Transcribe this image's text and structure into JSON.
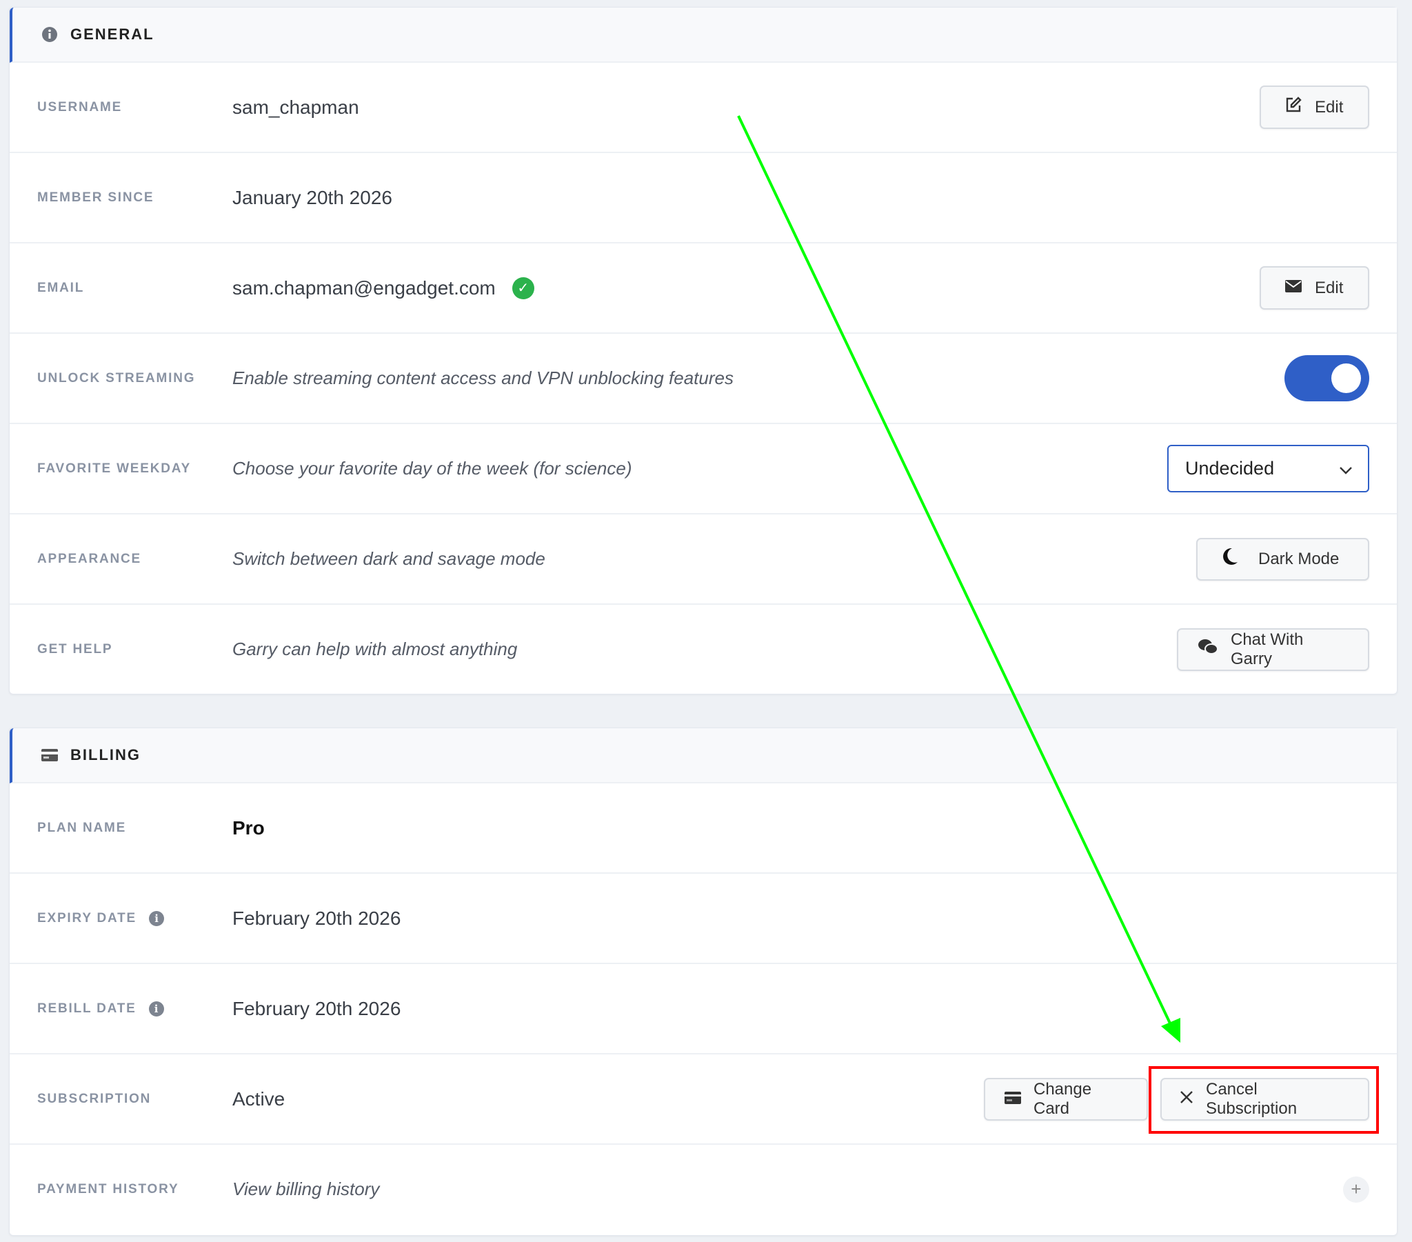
{
  "general": {
    "title": "GENERAL",
    "icon": "info-circle-icon",
    "rows": [
      {
        "label": "USERNAME",
        "value": "sam_chapman",
        "button": "Edit",
        "button_icon": "edit-icon"
      },
      {
        "label": "MEMBER SINCE",
        "value": "January 20th 2026"
      },
      {
        "label": "EMAIL",
        "value": "sam.chapman@engadget.com",
        "verified": true,
        "button": "Edit",
        "button_icon": "envelope-icon"
      },
      {
        "label": "UNLOCK STREAMING",
        "value": "Enable streaming content access and VPN unblocking features",
        "toggle_on": true
      },
      {
        "label": "FAVORITE WEEKDAY",
        "value": "Choose your favorite day of the week (for science)",
        "select_value": "Undecided"
      },
      {
        "label": "APPEARANCE",
        "value": "Switch between dark and savage mode",
        "button": "Dark Mode",
        "button_icon": "moon-icon"
      },
      {
        "label": "GET HELP",
        "value": "Garry can help with almost anything",
        "button": "Chat With Garry",
        "button_icon": "chat-icon"
      }
    ]
  },
  "billing": {
    "title": "BILLING",
    "icon": "credit-card-icon",
    "rows": [
      {
        "label": "PLAN NAME",
        "value": "Pro"
      },
      {
        "label": "EXPIRY DATE",
        "value": "February 20th 2026",
        "info": true
      },
      {
        "label": "REBILL DATE",
        "value": "February 20th 2026",
        "info": true
      },
      {
        "label": "SUBSCRIPTION",
        "value": "Active",
        "buttons": [
          "Change Card",
          "Cancel Subscription"
        ]
      },
      {
        "label": "PAYMENT HISTORY",
        "value": "View billing history"
      }
    ]
  },
  "colors": {
    "accent": "#2f5fc7",
    "verified": "#2bb24c",
    "annotation_arrow": "#00ff00",
    "annotation_box": "#ff0000"
  }
}
